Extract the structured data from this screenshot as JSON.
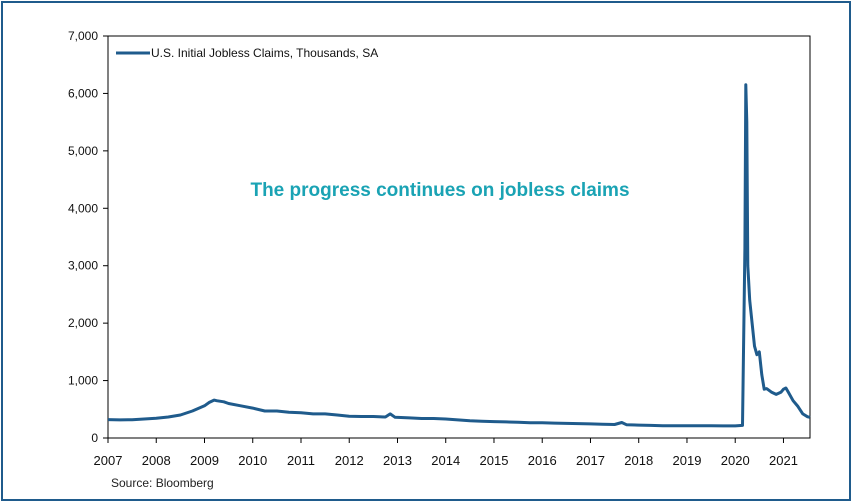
{
  "chart_data": {
    "type": "line",
    "title": "The progress continues on jobless claims",
    "title_color": "#1aa3b4",
    "xlabel": "",
    "ylabel": "",
    "xlim": [
      2007,
      2021.55
    ],
    "ylim": [
      0,
      7000
    ],
    "y_ticks": [
      0,
      1000,
      2000,
      3000,
      4000,
      5000,
      6000,
      7000
    ],
    "y_tick_labels": [
      "0",
      "1,000",
      "2,000",
      "3,000",
      "4,000",
      "5,000",
      "6,000",
      "7,000"
    ],
    "x_ticks": [
      2007,
      2008,
      2009,
      2010,
      2011,
      2012,
      2013,
      2014,
      2015,
      2016,
      2017,
      2018,
      2019,
      2020,
      2021
    ],
    "x_tick_labels": [
      "2007",
      "2008",
      "2009",
      "2010",
      "2011",
      "2012",
      "2013",
      "2014",
      "2015",
      "2016",
      "2017",
      "2018",
      "2019",
      "2020",
      "2021"
    ],
    "grid": false,
    "legend_position": "top-left",
    "series": [
      {
        "name": "U.S. Initial Jobless Claims, Thousands, SA",
        "color": "#1f5b8c",
        "x": [
          2007.0,
          2007.25,
          2007.5,
          2007.75,
          2008.0,
          2008.25,
          2008.5,
          2008.75,
          2009.0,
          2009.1,
          2009.2,
          2009.25,
          2009.4,
          2009.5,
          2009.75,
          2010.0,
          2010.25,
          2010.5,
          2010.75,
          2011.0,
          2011.25,
          2011.5,
          2011.75,
          2012.0,
          2012.25,
          2012.5,
          2012.75,
          2012.85,
          2012.95,
          2013.25,
          2013.5,
          2013.75,
          2014.0,
          2014.25,
          2014.5,
          2014.75,
          2015.0,
          2015.25,
          2015.5,
          2015.75,
          2016.0,
          2016.25,
          2016.5,
          2016.75,
          2017.0,
          2017.25,
          2017.5,
          2017.65,
          2017.75,
          2018.0,
          2018.25,
          2018.5,
          2018.75,
          2019.0,
          2019.25,
          2019.5,
          2019.75,
          2020.0,
          2020.15,
          2020.2,
          2020.22,
          2020.24,
          2020.26,
          2020.3,
          2020.35,
          2020.4,
          2020.45,
          2020.5,
          2020.55,
          2020.6,
          2020.65,
          2020.75,
          2020.85,
          2020.95,
          2021.0,
          2021.05,
          2021.1,
          2021.2,
          2021.3,
          2021.4,
          2021.5,
          2021.55
        ],
        "values": [
          320,
          315,
          318,
          330,
          345,
          365,
          400,
          470,
          560,
          620,
          660,
          650,
          630,
          600,
          560,
          520,
          470,
          470,
          450,
          440,
          420,
          420,
          400,
          380,
          375,
          375,
          365,
          420,
          360,
          350,
          340,
          340,
          330,
          315,
          300,
          290,
          285,
          280,
          275,
          265,
          265,
          260,
          255,
          250,
          245,
          240,
          235,
          270,
          230,
          225,
          220,
          215,
          215,
          215,
          215,
          215,
          210,
          210,
          220,
          3300,
          6150,
          5500,
          3000,
          2400,
          2000,
          1600,
          1450,
          1500,
          1100,
          850,
          860,
          800,
          760,
          800,
          850,
          870,
          800,
          650,
          550,
          420,
          370,
          360
        ]
      }
    ]
  },
  "source": "Source: Bloomberg"
}
